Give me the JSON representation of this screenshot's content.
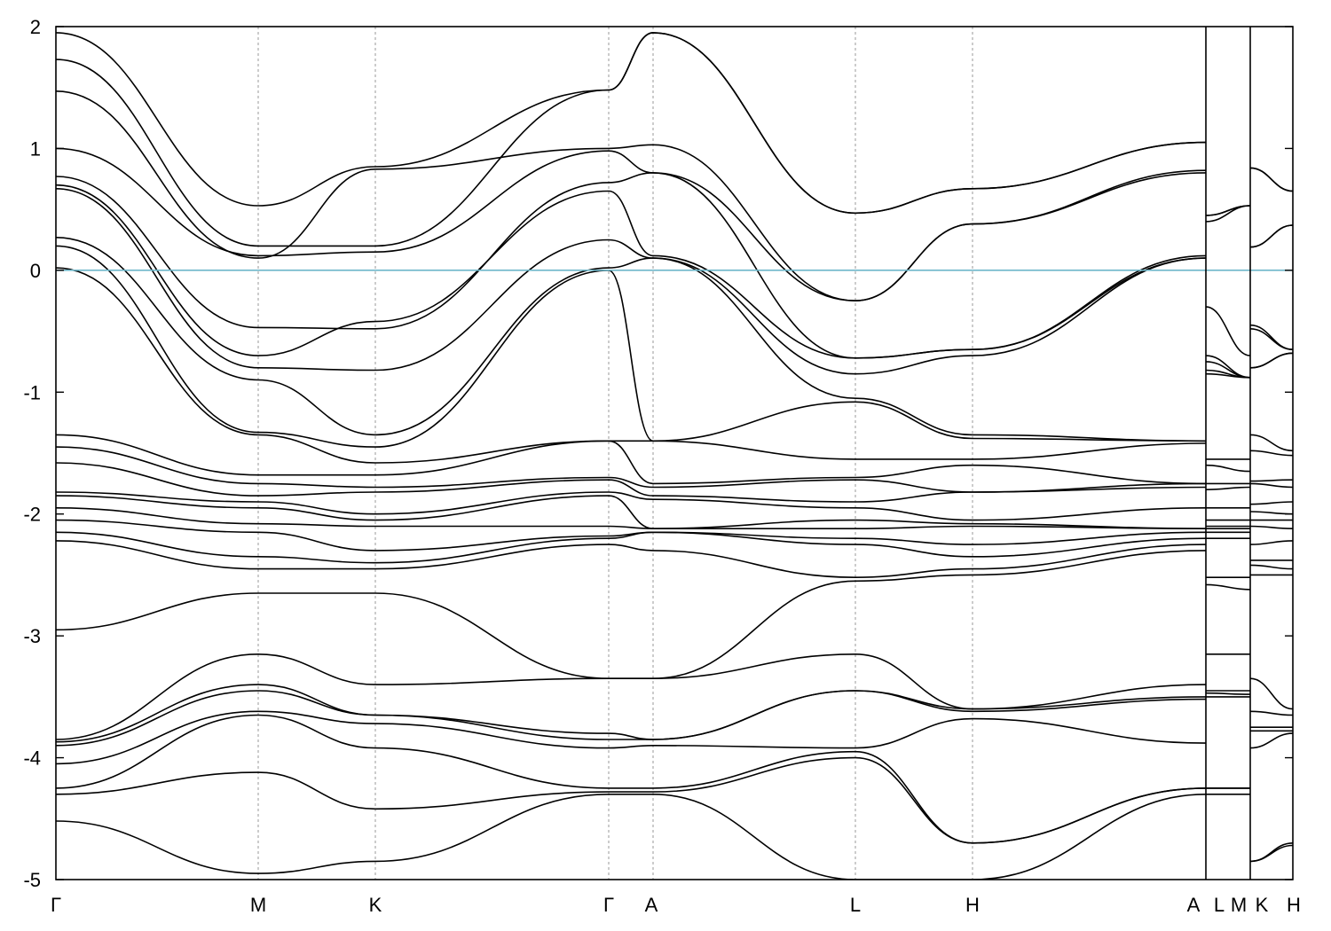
{
  "chart_data": {
    "type": "line",
    "title": "",
    "xlabel": "",
    "ylabel": "",
    "ylim": [
      -5,
      2
    ],
    "y_ticks": [
      "2",
      "1",
      "0",
      "-1",
      "-2",
      "-3",
      "-4",
      "-5"
    ],
    "x_ticks": [
      "Γ",
      "M",
      "K",
      "Γ",
      "A",
      "L",
      "H",
      "A",
      "L",
      "M",
      "K",
      "H"
    ],
    "grid": "vertical dashed lines at high-symmetry points",
    "fermi_level": 0,
    "fermi_color": "#6fb7c9",
    "line_color": "#000000",
    "segments": [
      {
        "from": "Γ",
        "to": "M"
      },
      {
        "from": "M",
        "to": "K"
      },
      {
        "from": "K",
        "to": "Γ"
      },
      {
        "from": "Γ",
        "to": "A"
      },
      {
        "from": "A",
        "to": "L"
      },
      {
        "from": "L",
        "to": "H"
      },
      {
        "from": "H",
        "to": "A"
      },
      {
        "from": "L",
        "to": "M"
      },
      {
        "from": "K",
        "to": "H"
      }
    ],
    "series": [
      {
        "values": [
          1.95,
          0.53,
          0.85,
          1.48,
          1.95,
          0.47,
          0.67,
          1.05,
          0.45,
          0.53,
          0.84,
          0.65
        ]
      },
      {
        "values": [
          1.73,
          0.2,
          0.2,
          1.48,
          1.95,
          0.47,
          0.67,
          1.05,
          0.45,
          0.53,
          0.84,
          0.65
        ]
      },
      {
        "values": [
          1.47,
          0.1,
          0.83,
          1.0,
          1.03,
          -0.25,
          0.38,
          0.82,
          0.4,
          0.53,
          0.19,
          0.37
        ]
      },
      {
        "values": [
          1.0,
          0.12,
          0.15,
          0.98,
          0.8,
          -0.25,
          0.38,
          0.8,
          -0.3,
          -0.7,
          0.19,
          0.37
        ]
      },
      {
        "values": [
          0.77,
          -0.47,
          -0.48,
          0.72,
          0.8,
          -0.72,
          -0.65,
          0.12,
          -0.7,
          -0.88,
          -0.45,
          -0.65
        ]
      },
      {
        "values": [
          0.7,
          -0.7,
          -0.42,
          0.65,
          0.12,
          -0.72,
          -0.65,
          0.1,
          -0.75,
          -0.88,
          -0.48,
          -0.65
        ]
      },
      {
        "values": [
          0.67,
          -0.8,
          -0.82,
          0.25,
          0.1,
          -0.85,
          -0.7,
          0.1,
          -0.82,
          -0.88,
          -0.8,
          -0.68
        ]
      },
      {
        "values": [
          0.27,
          -0.9,
          -1.35,
          0.02,
          0.1,
          -1.05,
          -1.35,
          -1.4,
          -0.85,
          -0.88,
          -0.8,
          -0.68
        ]
      },
      {
        "values": [
          0.2,
          -1.33,
          -1.45,
          0.0,
          -1.4,
          -1.08,
          -1.38,
          -1.4,
          -1.55,
          -1.55,
          -1.35,
          -1.48
        ]
      },
      {
        "values": [
          0.02,
          -1.35,
          -1.58,
          -1.4,
          -1.4,
          -1.55,
          -1.55,
          -1.42,
          -1.6,
          -1.65,
          -1.48,
          -1.52
        ]
      },
      {
        "values": [
          -1.35,
          -1.68,
          -1.68,
          -1.4,
          -1.75,
          -1.7,
          -1.6,
          -1.75,
          -1.75,
          -1.75,
          -1.73,
          -1.72
        ]
      },
      {
        "values": [
          -1.45,
          -1.75,
          -1.78,
          -1.7,
          -1.78,
          -1.72,
          -1.82,
          -1.75,
          -1.8,
          -1.78,
          -1.75,
          -1.78
        ]
      },
      {
        "values": [
          -1.58,
          -1.85,
          -1.82,
          -1.72,
          -1.85,
          -1.9,
          -1.82,
          -1.78,
          -1.95,
          -1.95,
          -1.92,
          -1.9
        ]
      },
      {
        "values": [
          -1.82,
          -1.9,
          -2.0,
          -1.82,
          -1.88,
          -1.95,
          -2.05,
          -1.95,
          -2.05,
          -2.05,
          -1.98,
          -2.0
        ]
      },
      {
        "values": [
          -1.85,
          -1.95,
          -2.05,
          -1.85,
          -2.12,
          -2.05,
          -2.08,
          -2.12,
          -2.1,
          -2.1,
          -2.05,
          -2.05
        ]
      },
      {
        "values": [
          -1.95,
          -2.08,
          -2.1,
          -2.1,
          -2.12,
          -2.12,
          -2.1,
          -2.12,
          -2.12,
          -2.12,
          -2.1,
          -2.12
        ]
      },
      {
        "values": [
          -2.05,
          -2.15,
          -2.3,
          -2.18,
          -2.15,
          -2.2,
          -2.25,
          -2.15,
          -2.15,
          -2.15,
          -2.25,
          -2.22
        ]
      },
      {
        "values": [
          -2.15,
          -2.35,
          -2.4,
          -2.2,
          -2.15,
          -2.25,
          -2.35,
          -2.2,
          -2.2,
          -2.2,
          -2.38,
          -2.38
        ]
      },
      {
        "values": [
          -2.22,
          -2.45,
          -2.45,
          -2.25,
          -2.3,
          -2.52,
          -2.45,
          -2.25,
          -2.52,
          -2.52,
          -2.42,
          -2.45
        ]
      },
      {
        "values": [
          -2.95,
          -2.65,
          -2.65,
          -3.35,
          -3.35,
          -2.55,
          -2.5,
          -2.3,
          -2.58,
          -2.62,
          -2.5,
          -2.5
        ]
      },
      {
        "values": [
          -3.85,
          -3.15,
          -3.4,
          -3.35,
          -3.35,
          -3.15,
          -3.6,
          -3.4,
          -3.15,
          -3.15,
          -3.35,
          -3.6
        ]
      },
      {
        "values": [
          -3.87,
          -3.4,
          -3.65,
          -3.8,
          -3.85,
          -3.45,
          -3.6,
          -3.5,
          -3.45,
          -3.45,
          -3.62,
          -3.65
        ]
      },
      {
        "values": [
          -3.9,
          -3.45,
          -3.65,
          -3.85,
          -3.85,
          -3.45,
          -3.62,
          -3.52,
          -3.47,
          -3.48,
          -3.75,
          -3.75
        ]
      },
      {
        "values": [
          -4.05,
          -3.62,
          -3.72,
          -3.92,
          -3.9,
          -3.92,
          -3.68,
          -3.88,
          -3.5,
          -3.5,
          -3.78,
          -3.78
        ]
      },
      {
        "values": [
          -4.25,
          -3.65,
          -3.92,
          -4.25,
          -4.25,
          -3.95,
          -4.7,
          -4.25,
          -4.25,
          -4.25,
          -3.92,
          -3.8
        ]
      },
      {
        "values": [
          -4.3,
          -4.12,
          -4.42,
          -4.28,
          -4.28,
          -4.0,
          -4.7,
          -4.25,
          -4.25,
          -4.25,
          -4.85,
          -4.7
        ]
      },
      {
        "values": [
          -4.52,
          -4.95,
          -4.85,
          -4.3,
          -4.3,
          -5.0,
          -5.0,
          -4.3,
          -4.3,
          -4.3,
          -4.85,
          -4.72
        ]
      }
    ]
  }
}
